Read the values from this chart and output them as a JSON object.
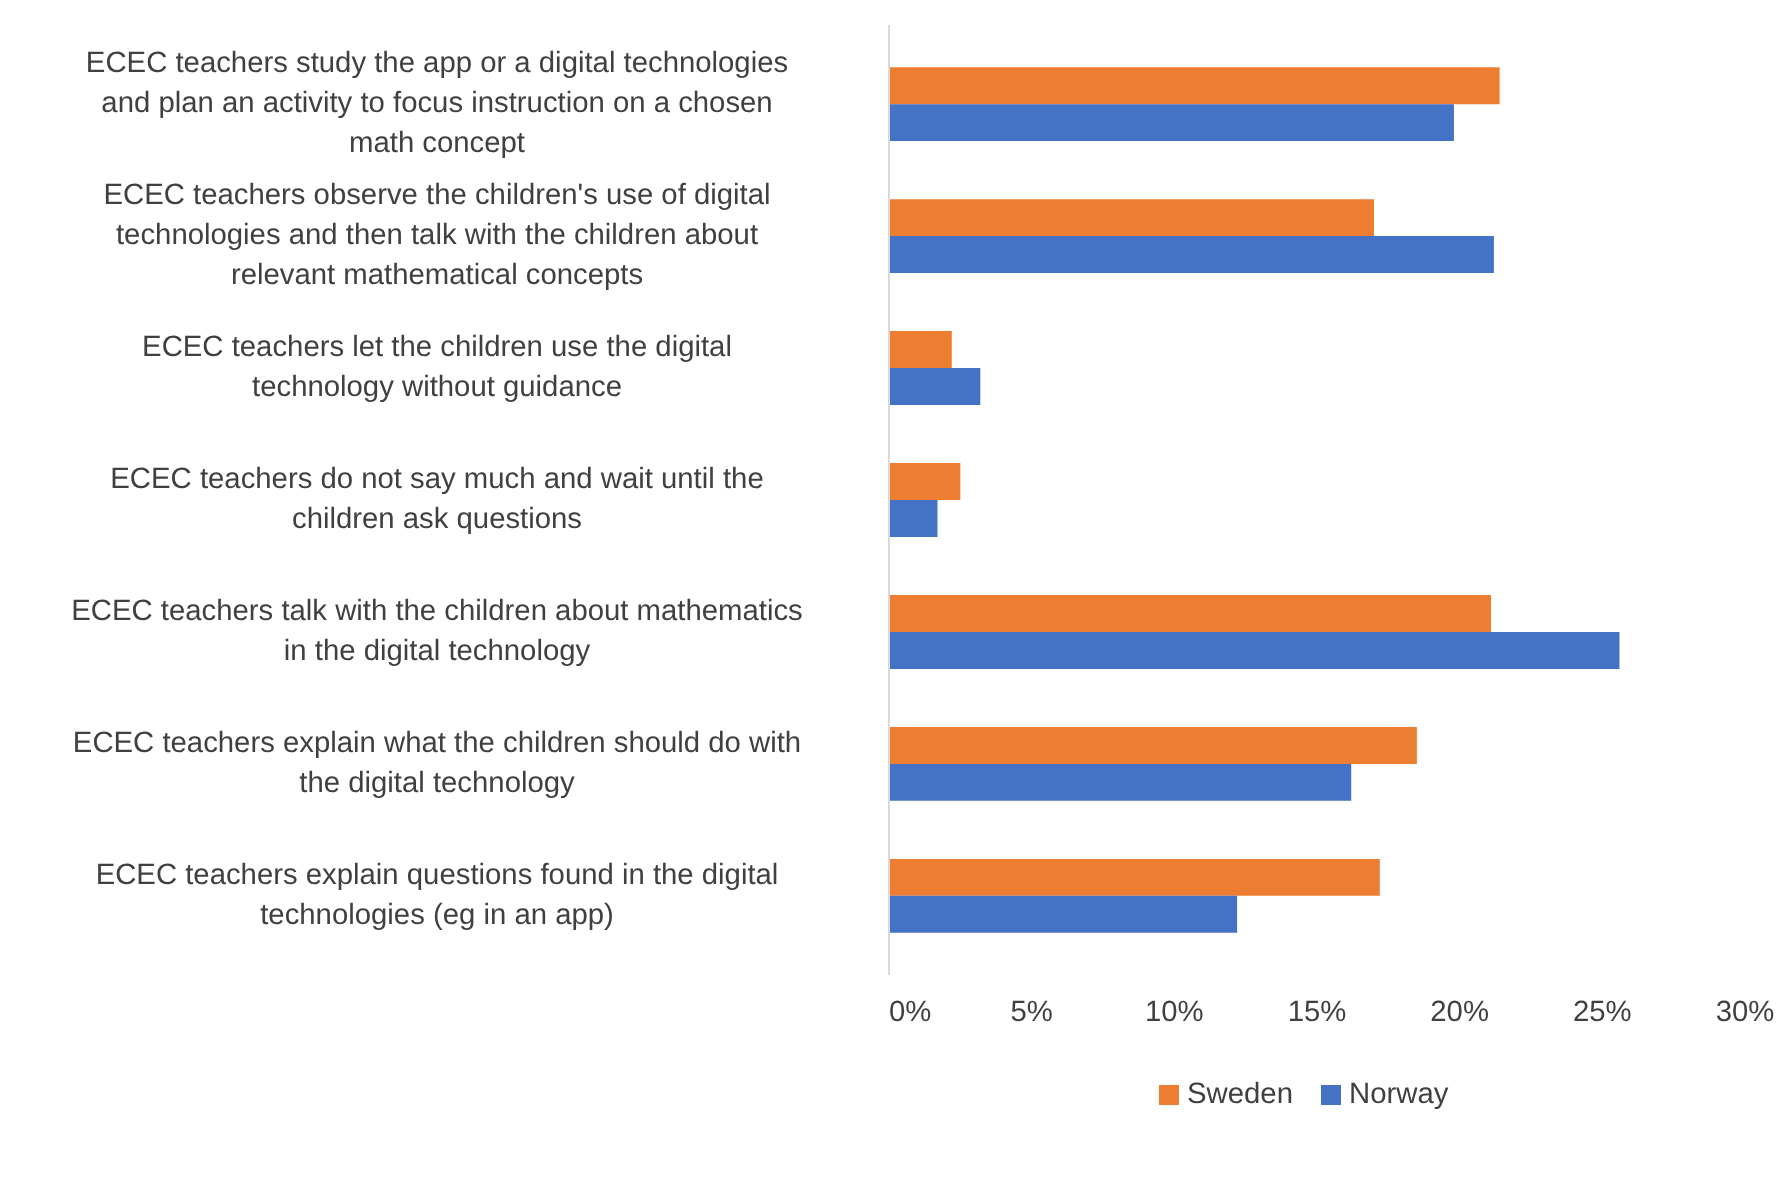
{
  "chart_data": {
    "type": "bar",
    "orientation": "horizontal",
    "categories": [
      "ECEC teachers study the app or a digital technologies and plan an activity to focus instruction on a chosen math concept",
      "ECEC teachers observe the children's use of digital technologies and then talk with the children about relevant mathematical concepts",
      "ECEC teachers let the children use the digital technology without guidance",
      "ECEC teachers do not say much and wait until the children ask questions",
      "ECEC teachers talk with the children about mathematics in the digital technology",
      "ECEC teachers explain what the children should do with the digital technology",
      "ECEC teachers explain questions found in the digital technologies (eg in an app)"
    ],
    "series": [
      {
        "name": "Sweden",
        "color": "#ed7d31",
        "values": [
          21.4,
          17.0,
          2.2,
          2.5,
          21.1,
          18.5,
          17.2
        ]
      },
      {
        "name": "Norway",
        "color": "#4472c4",
        "values": [
          19.8,
          21.2,
          3.2,
          1.7,
          25.6,
          16.2,
          12.2
        ]
      }
    ],
    "xlim": [
      0,
      30
    ],
    "xticks": [
      {
        "value": 0,
        "label": "0%"
      },
      {
        "value": 5,
        "label": "5%"
      },
      {
        "value": 10,
        "label": "10%"
      },
      {
        "value": 15,
        "label": "15%"
      },
      {
        "value": 20,
        "label": "20%"
      },
      {
        "value": 25,
        "label": "25%"
      },
      {
        "value": 30,
        "label": "30%"
      }
    ],
    "grid": false,
    "legend": "bottom"
  }
}
